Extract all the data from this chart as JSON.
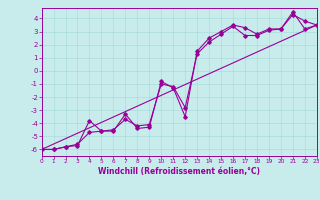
{
  "title": "",
  "xlabel": "Windchill (Refroidissement éolien,°C)",
  "ylabel": "",
  "bg_color": "#c8ecec",
  "line_color": "#990099",
  "grid_color": "#aadddd",
  "spine_color": "#888888",
  "x_min": 0,
  "x_max": 23,
  "y_min": -6.5,
  "y_max": 4.8,
  "yticks": [
    -6,
    -5,
    -4,
    -3,
    -2,
    -1,
    0,
    1,
    2,
    3,
    4
  ],
  "xticks": [
    0,
    1,
    2,
    3,
    4,
    5,
    6,
    7,
    8,
    9,
    10,
    11,
    12,
    13,
    14,
    15,
    16,
    17,
    18,
    19,
    20,
    21,
    22,
    23
  ],
  "series1_x": [
    0,
    1,
    2,
    3,
    4,
    5,
    6,
    7,
    8,
    9,
    10,
    11,
    12,
    13,
    14,
    15,
    16,
    17,
    18,
    19,
    20,
    21,
    22,
    23
  ],
  "series1_y": [
    -6.0,
    -6.0,
    -5.8,
    -5.7,
    -3.8,
    -4.6,
    -4.6,
    -3.3,
    -4.4,
    -4.3,
    -0.8,
    -1.3,
    -3.5,
    1.5,
    2.5,
    3.0,
    3.5,
    3.3,
    2.8,
    3.2,
    3.2,
    4.5,
    3.2,
    3.5
  ],
  "series2_x": [
    0,
    23
  ],
  "series2_y": [
    -6.0,
    3.5
  ],
  "series3_x": [
    0,
    1,
    2,
    3,
    4,
    5,
    6,
    7,
    8,
    9,
    10,
    11,
    12,
    13,
    14,
    15,
    16,
    17,
    18,
    19,
    20,
    21,
    22,
    23
  ],
  "series3_y": [
    -6.0,
    -6.0,
    -5.8,
    -5.6,
    -4.7,
    -4.6,
    -4.5,
    -3.7,
    -4.2,
    -4.1,
    -1.0,
    -1.2,
    -2.8,
    1.3,
    2.2,
    2.8,
    3.4,
    2.7,
    2.7,
    3.1,
    3.2,
    4.3,
    3.8,
    3.5
  ]
}
